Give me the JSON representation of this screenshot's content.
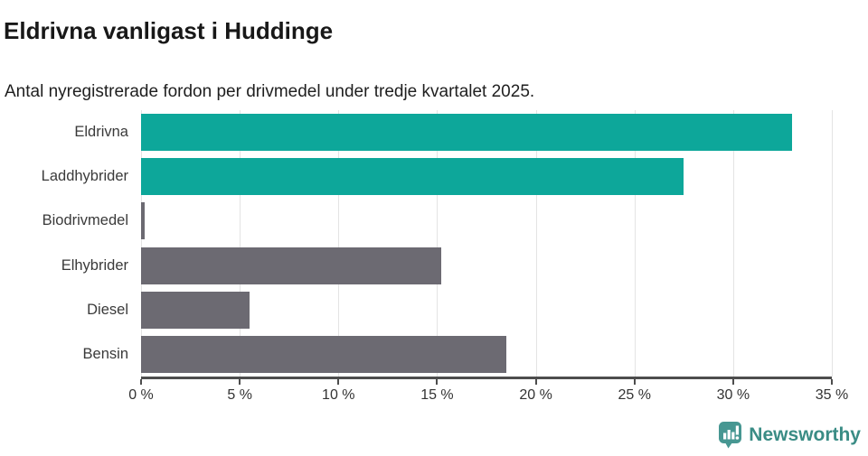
{
  "header": {
    "title": "Eldrivna vanligast i Huddinge",
    "subtitle": "Antal nyregistrerade fordon per drivmedel under tredje kvartalet 2025."
  },
  "chart_data": {
    "type": "bar",
    "orientation": "horizontal",
    "title": "Eldrivna vanligast i Huddinge",
    "subtitle": "Antal nyregistrerade fordon per drivmedel under tredje kvartalet 2025.",
    "categories": [
      "Eldrivna",
      "Laddhybrider",
      "Biodrivmedel",
      "Elhybrider",
      "Diesel",
      "Bensin"
    ],
    "values": [
      33.0,
      27.5,
      0.2,
      15.2,
      5.5,
      18.5
    ],
    "unit": "%",
    "bar_colors": [
      "#0da79a",
      "#0da79a",
      "#6c6a72",
      "#6c6a72",
      "#6c6a72",
      "#6c6a72"
    ],
    "xlabel": "",
    "ylabel": "",
    "xlim": [
      0,
      35
    ],
    "x_ticks": [
      0,
      5,
      10,
      15,
      20,
      25,
      30,
      35
    ],
    "x_tick_labels": [
      "0 %",
      "5 %",
      "10 %",
      "15 %",
      "20 %",
      "25 %",
      "30 %",
      "35 %"
    ],
    "grid": true,
    "legend": false
  },
  "colors": {
    "accent_teal": "#0da79a",
    "neutral_gray": "#6c6a72",
    "gridline": "#e4e4e4",
    "axis": "#4d4d4d",
    "brand_teal": "#3a8c85",
    "brand_icon_teal": "#479792"
  },
  "footer": {
    "brand": "Newsworthy"
  }
}
